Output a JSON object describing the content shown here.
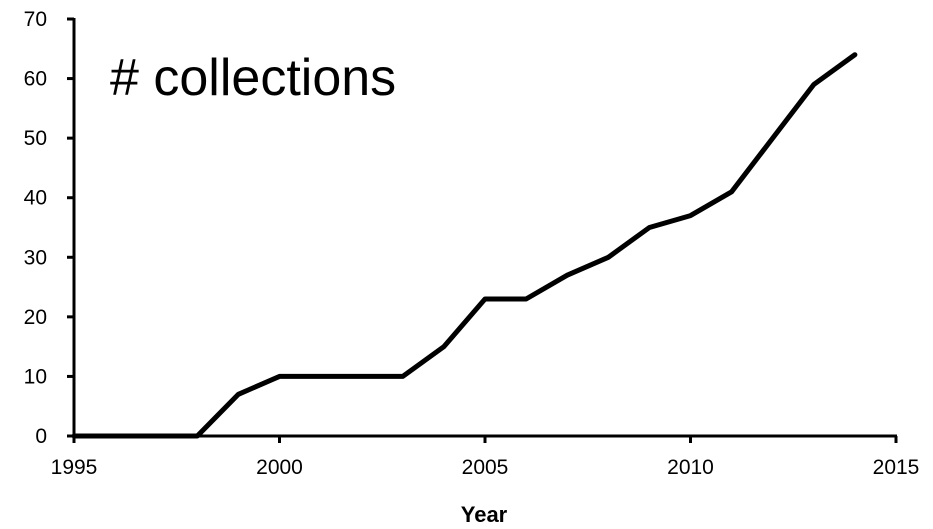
{
  "chart_data": {
    "type": "line",
    "title": "# collections",
    "xlabel": "Year",
    "ylabel": "",
    "xlim": [
      1995,
      2015
    ],
    "ylim": [
      0,
      70
    ],
    "x_ticks": [
      1995,
      2000,
      2005,
      2010,
      2015
    ],
    "y_ticks": [
      0,
      10,
      20,
      30,
      40,
      50,
      60,
      70
    ],
    "grid": false,
    "legend": "none",
    "line_color": "#000000",
    "series": [
      {
        "x": [
          1995,
          1996,
          1997,
          1998,
          1999,
          2000,
          2001,
          2002,
          2003,
          2004,
          2005,
          2006,
          2007,
          2008,
          2009,
          2010,
          2011,
          2012,
          2013,
          2014
        ],
        "y": [
          0,
          0,
          0,
          0,
          7,
          10,
          10,
          10,
          10,
          15,
          23,
          23,
          27,
          30,
          35,
          37,
          41,
          50,
          59,
          64
        ]
      }
    ]
  }
}
